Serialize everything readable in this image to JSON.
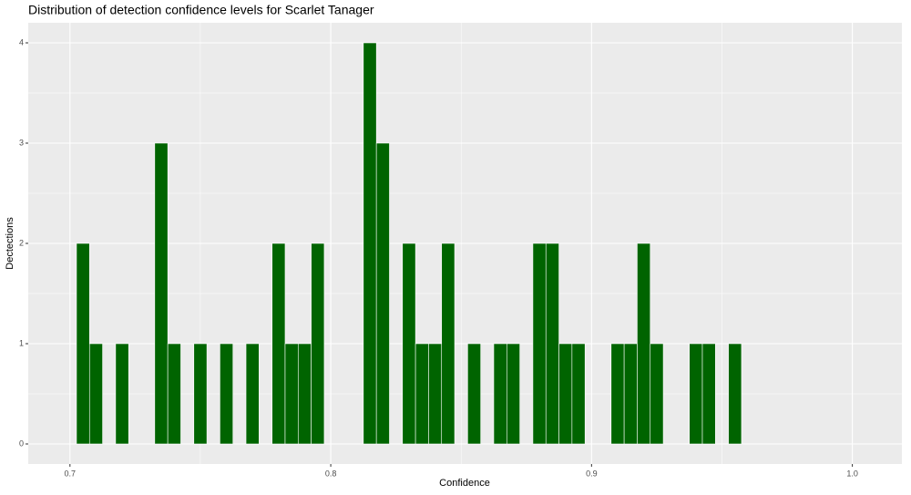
{
  "chart_data": {
    "type": "histogram",
    "title": "Distribution of detection confidence levels for Scarlet Tanager",
    "x_label": "Confidence",
    "y_label": "Dectections",
    "color": "#006400",
    "bins": [
      0.7025,
      0.7075,
      0.7125,
      0.7175,
      0.7225,
      0.7275,
      0.7325,
      0.7375,
      0.7425,
      0.7475,
      0.7525,
      0.7575,
      0.7625,
      0.7675,
      0.7725,
      0.7775,
      0.7825,
      0.7875,
      0.7925,
      0.7975,
      0.8025,
      0.8075,
      0.8125,
      0.8175,
      0.8225,
      0.8275,
      0.8325,
      0.8375,
      0.8425,
      0.8475,
      0.8525,
      0.8575,
      0.8625,
      0.8675,
      0.8725,
      0.8775,
      0.8825,
      0.8875,
      0.8925,
      0.8975,
      0.9025,
      0.9075,
      0.9125,
      0.9175,
      0.9225,
      0.9275,
      0.9325,
      0.9375,
      0.9425,
      0.9475,
      0.9525,
      0.9575
    ],
    "counts": [
      2,
      1,
      0,
      1,
      0,
      0,
      3,
      1,
      0,
      1,
      0,
      1,
      0,
      1,
      0,
      2,
      1,
      1,
      2,
      0,
      0,
      0,
      4,
      3,
      0,
      2,
      1,
      1,
      2,
      0,
      1,
      0,
      1,
      1,
      0,
      2,
      2,
      1,
      1,
      0,
      0,
      1,
      1,
      2,
      1,
      0,
      0,
      1,
      1,
      0,
      1
    ],
    "xlim": [
      0.684,
      1.019
    ],
    "xticks": [
      0.7,
      0.8,
      0.9,
      {
        "value": 1,
        "label": "1.0"
      }
    ],
    "ylim": [
      -0.2,
      4.2
    ],
    "yticks": [
      0,
      1,
      2,
      3,
      4
    ],
    "grid": true
  }
}
